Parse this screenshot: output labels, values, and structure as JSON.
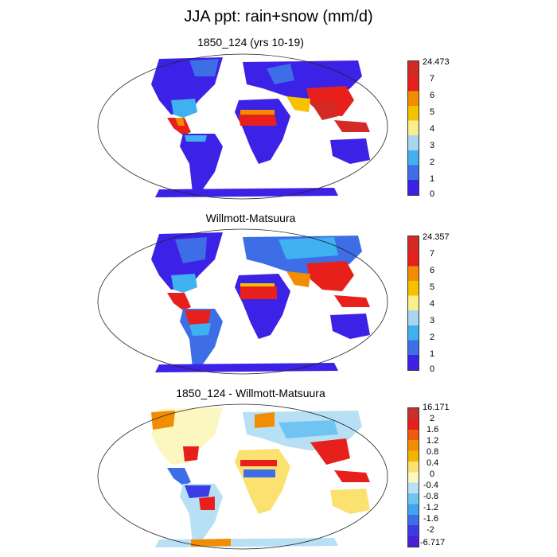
{
  "title": "JJA ppt: rain+snow (mm/d)",
  "panels": [
    {
      "title": "1850_124 (yrs 10-19)",
      "colorbar": {
        "labels": [
          "24.473",
          "7",
          "6",
          "5",
          "4",
          "3",
          "2",
          "1",
          "0"
        ],
        "colors": [
          "#d42a26",
          "#e8201c",
          "#f28c00",
          "#f6c200",
          "#fbef8c",
          "#a8d6ef",
          "#3fb1f0",
          "#3d6ee6",
          "#3c22e6"
        ]
      }
    },
    {
      "title": "Willmott-Matsuura",
      "colorbar": {
        "labels": [
          "24.357",
          "7",
          "6",
          "5",
          "4",
          "3",
          "2",
          "1",
          "0"
        ],
        "colors": [
          "#d42a26",
          "#e8201c",
          "#f28c00",
          "#f6c200",
          "#fbef8c",
          "#a8d6ef",
          "#3fb1f0",
          "#3d6ee6",
          "#3c22e6"
        ]
      }
    },
    {
      "title": "1850_124 - Willmott-Matsuura",
      "colorbar": {
        "labels": [
          "16.171",
          "2",
          "1.6",
          "1.2",
          "0.8",
          "0.4",
          "0",
          "-0.4",
          "-0.8",
          "-1.2",
          "-1.6",
          "-2",
          "-6.717"
        ],
        "colors": [
          "#c9302c",
          "#e8201c",
          "#f05a0a",
          "#f28c00",
          "#f6b300",
          "#fbe170",
          "#fcf7c0",
          "#b7e0f5",
          "#6fc4f2",
          "#3fa5f0",
          "#3d6ee6",
          "#3c3ce6",
          "#4a1fd6"
        ]
      }
    }
  ]
}
